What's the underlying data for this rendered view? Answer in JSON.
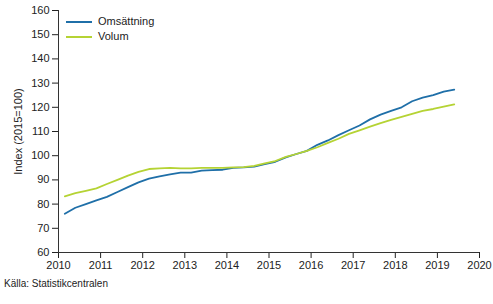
{
  "chart_data": {
    "type": "line",
    "y_label": "Index (2015=100)",
    "caption": "Källa: Statistikcentralen",
    "x": [
      2010.15,
      2010.4,
      2010.65,
      2010.9,
      2011.15,
      2011.4,
      2011.65,
      2011.9,
      2012.15,
      2012.4,
      2012.65,
      2012.9,
      2013.15,
      2013.4,
      2013.65,
      2013.9,
      2014.15,
      2014.4,
      2014.65,
      2014.9,
      2015.15,
      2015.4,
      2015.65,
      2015.9,
      2016.15,
      2016.4,
      2016.65,
      2016.9,
      2017.15,
      2017.4,
      2017.65,
      2017.9,
      2018.15,
      2018.4,
      2018.65,
      2018.9,
      2019.15,
      2019.4
    ],
    "series": [
      {
        "name": "Omsättning",
        "color": "#1f6fa8",
        "values": [
          76,
          78.5,
          80,
          81.5,
          83,
          85,
          87,
          89,
          90.5,
          91.5,
          92.3,
          93,
          93,
          93.8,
          94,
          94.2,
          95,
          95.2,
          95.5,
          96.5,
          97.5,
          99.3,
          100.7,
          102,
          104.5,
          106.3,
          108.5,
          110.5,
          112.5,
          115,
          117,
          118.5,
          120,
          122.5,
          124,
          125,
          126.5,
          127.3
        ]
      },
      {
        "name": "Volum",
        "color": "#b5d334",
        "values": [
          83.2,
          84.5,
          85.5,
          86.5,
          88.3,
          90,
          91.8,
          93.3,
          94.5,
          94.8,
          95,
          94.8,
          94.8,
          95,
          95,
          95,
          95.2,
          95.3,
          95.8,
          96.8,
          97.8,
          99.5,
          100.7,
          102,
          103.5,
          105.3,
          107,
          109,
          110.5,
          112,
          113.5,
          114.8,
          116,
          117.3,
          118.5,
          119.3,
          120.3,
          121.2
        ]
      }
    ],
    "xlim": [
      2010,
      2020
    ],
    "xticks": [
      2010,
      2011,
      2012,
      2013,
      2014,
      2015,
      2016,
      2017,
      2018,
      2019,
      2020
    ],
    "ylim": [
      60,
      160
    ],
    "yticks": [
      60,
      70,
      80,
      90,
      100,
      110,
      120,
      130,
      140,
      150,
      160
    ],
    "grid": false,
    "legend": "top-left"
  }
}
